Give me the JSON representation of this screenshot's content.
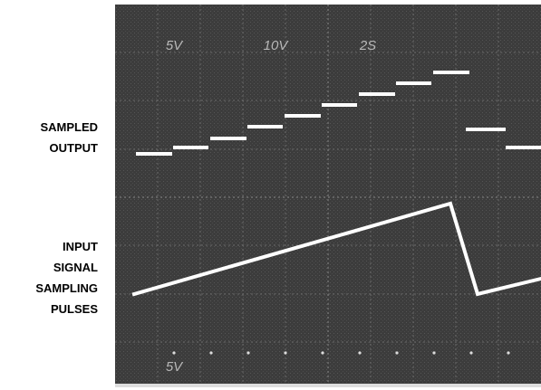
{
  "labels": {
    "sampled_output": [
      "SAMPLED",
      "OUTPUT"
    ],
    "input_signal": [
      "INPUT",
      "SIGNAL"
    ],
    "sampling_pulses": [
      "SAMPLING",
      "PULSES"
    ]
  },
  "scope_readout": {
    "top": [
      "5V",
      "10V",
      "2S"
    ],
    "bottom": "5V"
  }
}
